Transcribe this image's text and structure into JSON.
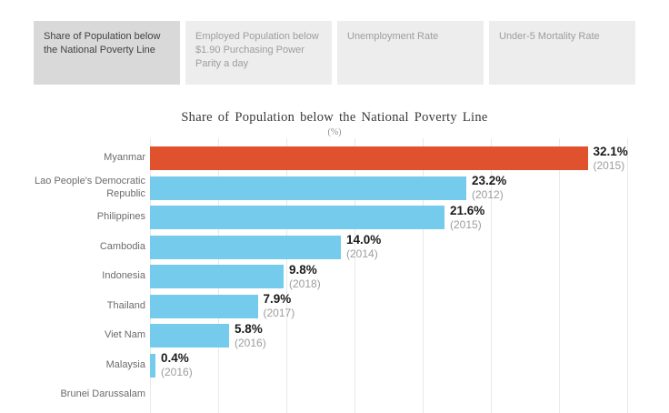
{
  "tabs": [
    {
      "label": "Share of Population below the National Poverty Line",
      "selected": true
    },
    {
      "label": "Employed Population below $1.90 Purchasing Power Parity a day",
      "selected": false
    },
    {
      "label": "Unemployment Rate",
      "selected": false
    },
    {
      "label": "Under-5 Mortality Rate",
      "selected": false
    }
  ],
  "chart_data": {
    "type": "bar",
    "orientation": "horizontal",
    "title": "Share of Population below the National Poverty Line",
    "subtitle": "(%)",
    "categories": [
      "Myanmar",
      "Lao People's Democratic\nRepublic",
      "Philippines",
      "Cambodia",
      "Indonesia",
      "Thailand",
      "Viet Nam",
      "Malaysia",
      "Brunei Darussalam"
    ],
    "values": [
      32.1,
      23.2,
      21.6,
      14.0,
      9.8,
      7.9,
      5.8,
      0.4,
      null
    ],
    "value_labels": [
      "32.1%",
      "23.2%",
      "21.6%",
      "14.0%",
      "9.8%",
      "7.9%",
      "5.8%",
      "0.4%",
      ""
    ],
    "year_labels": [
      "(2015)",
      "(2012)",
      "(2015)",
      "(2014)",
      "(2018)",
      "(2017)",
      "(2016)",
      "(2016)",
      ""
    ],
    "xlim": [
      0,
      35
    ],
    "gridline_interval": 5,
    "grid": true,
    "legend": "none",
    "highlight_index": 0,
    "colors": {
      "highlight": "#e0522e",
      "default": "#74cbec",
      "gridline": "#e9e9e9"
    }
  }
}
